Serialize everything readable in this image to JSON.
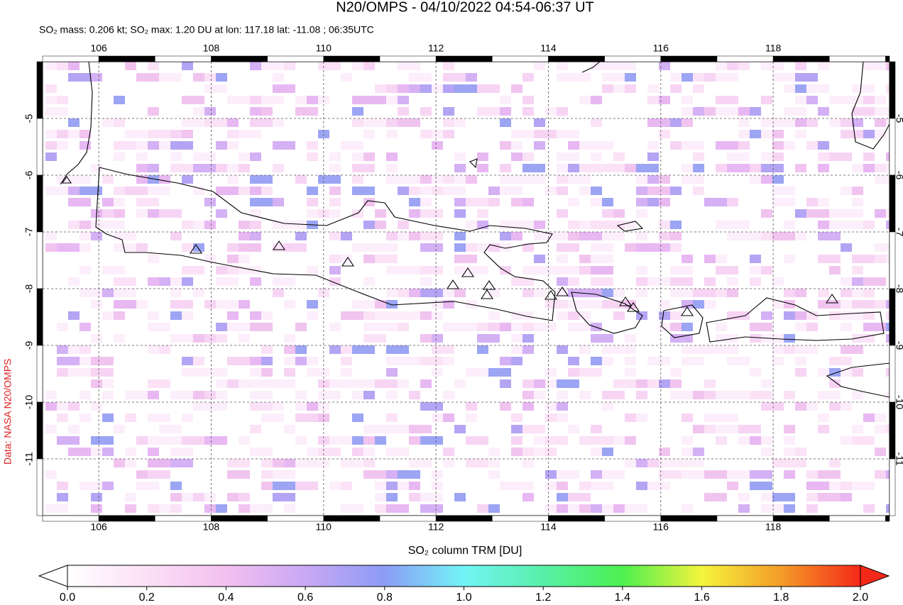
{
  "title": "N20/OMPS - 04/10/2022 04:54-06:37 UT",
  "subtitle": "SO₂ mass: 0.206 kt; SO₂ max: 1.20 DU at lon: 117.18 lat: -11.08 ; 06:35UTC",
  "credit": "Data: NASA N20/OMPS",
  "map": {
    "xlim": [
      105,
      120.07
    ],
    "ylim": [
      -4,
      -12
    ],
    "xticks": [
      106,
      108,
      110,
      112,
      114,
      116,
      118
    ],
    "yticks": [
      -5,
      -6,
      -7,
      -8,
      -9,
      -10,
      -11
    ],
    "grid": true
  },
  "colorbar": {
    "label": "SO₂ column TRM [DU]",
    "lim": [
      0,
      2
    ],
    "ticks": [
      {
        "value": 0,
        "label": "0.0"
      },
      {
        "value": 0.2,
        "label": "0.2"
      },
      {
        "value": 0.4,
        "label": "0.4"
      },
      {
        "value": 0.6,
        "label": "0.6"
      },
      {
        "value": 0.8,
        "label": "0.8"
      },
      {
        "value": 1,
        "label": "1.0"
      },
      {
        "value": 1.2,
        "label": "1.2"
      },
      {
        "value": 1.4,
        "label": "1.4"
      },
      {
        "value": 1.6,
        "label": "1.6"
      },
      {
        "value": 1.8,
        "label": "1.8"
      },
      {
        "value": 2,
        "label": "2.0"
      }
    ]
  }
}
